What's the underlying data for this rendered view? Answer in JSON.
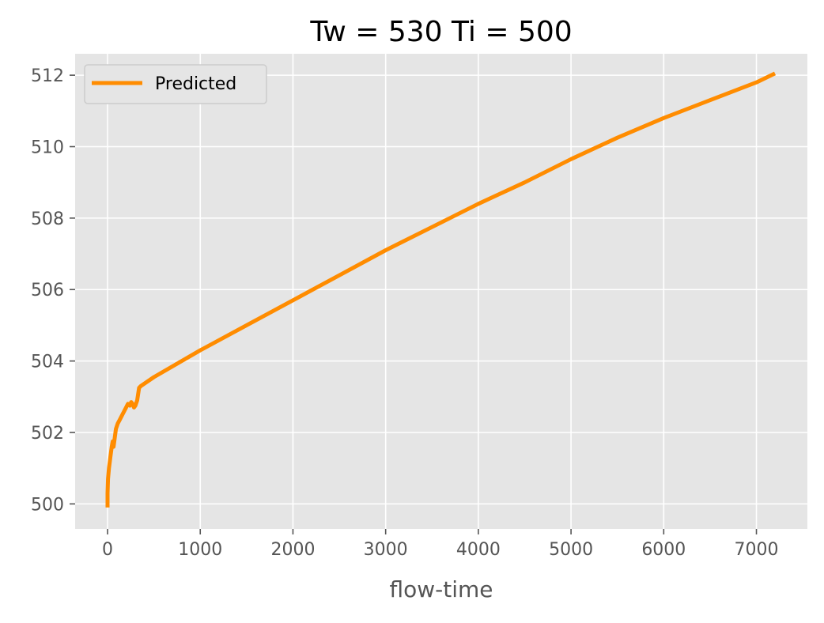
{
  "chart_data": {
    "type": "line",
    "title": "Tw = 530 Ti = 500",
    "xlabel": "flow-time",
    "ylabel": "",
    "xlim": [
      -350,
      7550
    ],
    "ylim": [
      499.3,
      512.6
    ],
    "xticks": [
      0,
      1000,
      2000,
      3000,
      4000,
      5000,
      6000,
      7000
    ],
    "yticks": [
      500,
      502,
      504,
      506,
      508,
      510,
      512
    ],
    "xtick_labels": [
      "0",
      "1000",
      "2000",
      "3000",
      "4000",
      "5000",
      "6000",
      "7000"
    ],
    "ytick_labels": [
      "500",
      "502",
      "504",
      "506",
      "508",
      "510",
      "512"
    ],
    "grid": true,
    "legend": "top-left",
    "series": [
      {
        "name": "Predicted",
        "color": "#ff8c00",
        "x": [
          0,
          0,
          5,
          15,
          30,
          45,
          55,
          65,
          75,
          90,
          110,
          130,
          160,
          190,
          220,
          240,
          255,
          270,
          285,
          300,
          320,
          340,
          360,
          500,
          1000,
          1500,
          2000,
          2500,
          3000,
          3500,
          4000,
          4500,
          5000,
          5500,
          6000,
          6500,
          7000,
          7200
        ],
        "y": [
          499.9,
          500.3,
          500.7,
          501.0,
          501.3,
          501.6,
          501.75,
          501.6,
          501.8,
          502.1,
          502.25,
          502.35,
          502.5,
          502.65,
          502.8,
          502.75,
          502.85,
          502.8,
          502.7,
          502.75,
          502.9,
          503.25,
          503.3,
          503.55,
          504.3,
          505.0,
          505.7,
          506.4,
          507.1,
          507.75,
          508.4,
          509.0,
          509.65,
          510.25,
          510.8,
          511.3,
          511.8,
          512.05
        ]
      }
    ]
  }
}
